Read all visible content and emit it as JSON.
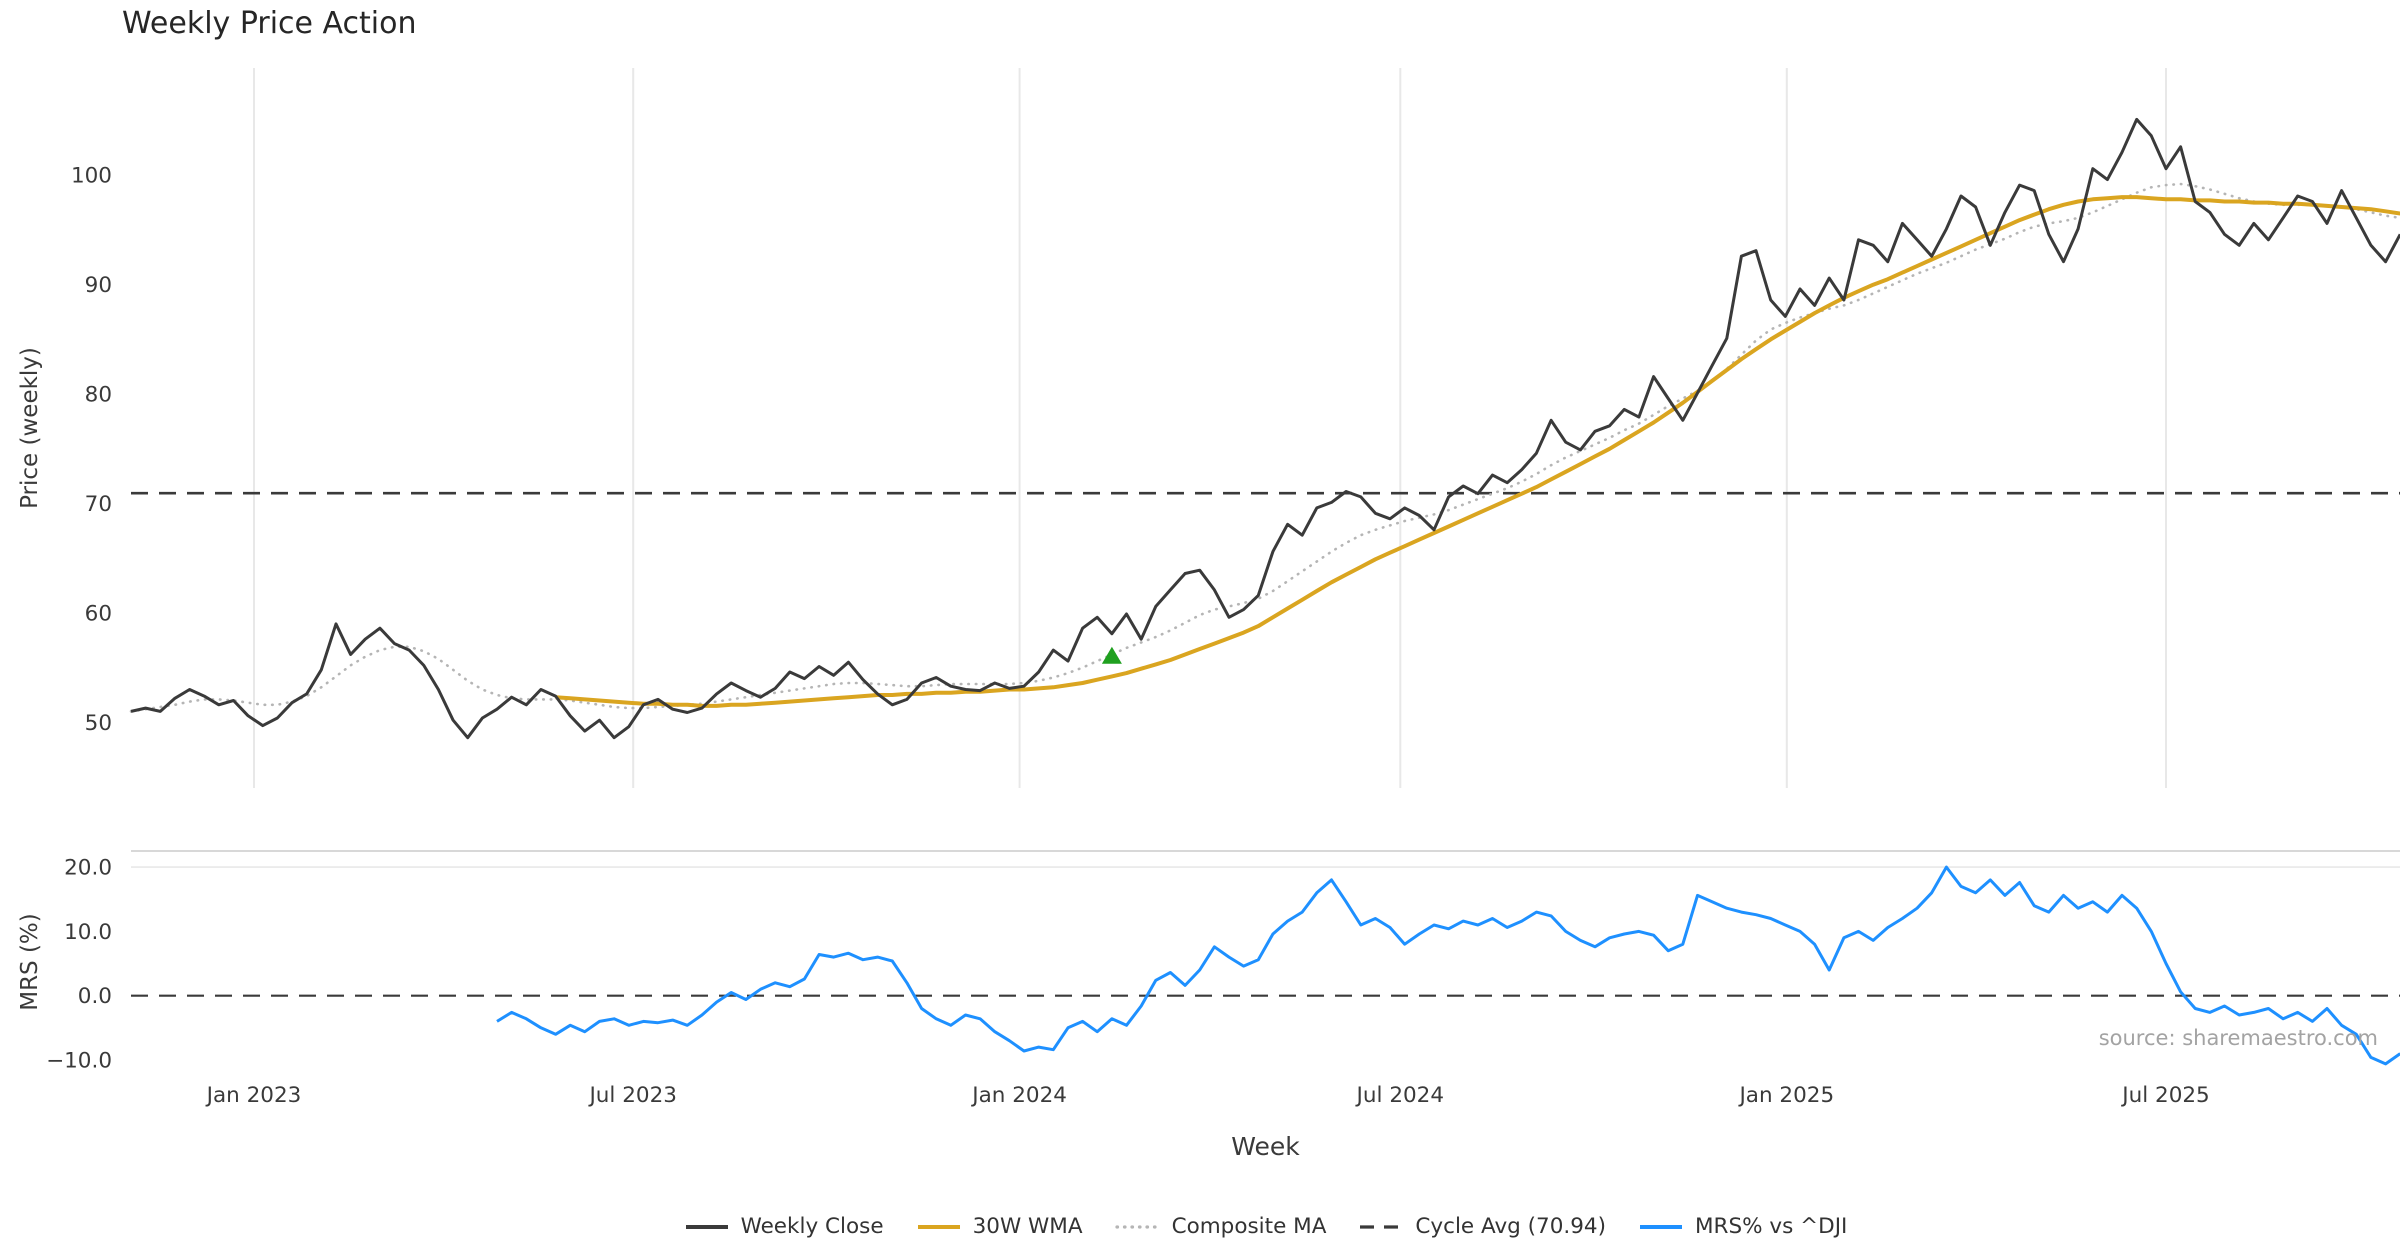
{
  "chart_data": {
    "type": "line",
    "title": "Weekly Price Action",
    "xlabel": "Week",
    "source": "source: sharemaestro.com",
    "legend_position": "bottom-center",
    "grid": "vertical-light-top-panel",
    "x_axis": {
      "unit": "week-index",
      "ticks": [
        {
          "label": "Jan 2023",
          "week": 8.4
        },
        {
          "label": "Jul 2023",
          "week": 34.3
        },
        {
          "label": "Jan 2024",
          "week": 60.7
        },
        {
          "label": "Jul 2024",
          "week": 86.7
        },
        {
          "label": "Jan 2025",
          "week": 113.1
        },
        {
          "label": "Jul 2025",
          "week": 139.0
        }
      ]
    },
    "panels": [
      {
        "name": "price",
        "ylabel": "Price (weekly)",
        "ylim": [
          44,
          109.8
        ],
        "yticks": [
          50,
          60,
          70,
          80,
          90,
          100
        ],
        "ytick_labels": [
          "50",
          "60",
          "70",
          "80",
          "90",
          "100"
        ],
        "cycle_avg": 70.94,
        "marker": {
          "week": 67,
          "value": 56,
          "symbol": "triangle-up",
          "color": "#1fa01f"
        },
        "series": [
          {
            "name": "Weekly Close",
            "color": "#3a3a3a",
            "style": "solid",
            "width": 3,
            "start_week": 0,
            "values": [
              51.0,
              51.3,
              51.0,
              52.2,
              53.0,
              52.4,
              51.6,
              52.0,
              50.6,
              49.7,
              50.4,
              51.8,
              52.6,
              54.8,
              59.0,
              56.2,
              57.6,
              58.6,
              57.2,
              56.6,
              55.2,
              53.0,
              50.2,
              48.6,
              50.4,
              51.2,
              52.3,
              51.6,
              53.0,
              52.4,
              50.6,
              49.2,
              50.2,
              48.6,
              49.6,
              51.6,
              52.1,
              51.2,
              50.9,
              51.3,
              52.6,
              53.6,
              52.9,
              52.3,
              53.1,
              54.6,
              54.0,
              55.1,
              54.3,
              55.5,
              53.9,
              52.6,
              51.6,
              52.1,
              53.6,
              54.1,
              53.3,
              53.0,
              52.9,
              53.6,
              53.1,
              53.3,
              54.6,
              56.6,
              55.6,
              58.6,
              59.6,
              58.1,
              59.9,
              57.6,
              60.6,
              62.1,
              63.6,
              63.9,
              62.1,
              59.6,
              60.3,
              61.6,
              65.6,
              68.1,
              67.1,
              69.6,
              70.1,
              71.1,
              70.6,
              69.1,
              68.6,
              69.6,
              68.9,
              67.6,
              70.6,
              71.6,
              70.9,
              72.6,
              71.9,
              73.1,
              74.6,
              77.6,
              75.6,
              74.9,
              76.6,
              77.1,
              78.6,
              77.9,
              81.6,
              79.6,
              77.6,
              80.1,
              82.6,
              85.1,
              92.6,
              93.1,
              88.6,
              87.1,
              89.6,
              88.1,
              90.6,
              88.6,
              94.1,
              93.6,
              92.1,
              95.6,
              94.1,
              92.6,
              95.1,
              98.1,
              97.1,
              93.6,
              96.6,
              99.1,
              98.6,
              94.6,
              92.1,
              95.1,
              100.6,
              99.6,
              102.1,
              105.1,
              103.6,
              100.6,
              102.6,
              97.6,
              96.6,
              94.6,
              93.6,
              95.6,
              94.1,
              96.1,
              98.1,
              97.6,
              95.6,
              98.6,
              96.1,
              93.6,
              92.1,
              94.6
            ]
          },
          {
            "name": "30W WMA",
            "color": "#DAA520",
            "style": "solid",
            "width": 4,
            "start_week": 29,
            "values": [
              52.3,
              52.2,
              52.1,
              52.0,
              51.9,
              51.8,
              51.7,
              51.7,
              51.6,
              51.6,
              51.5,
              51.5,
              51.6,
              51.6,
              51.7,
              51.8,
              51.9,
              52.0,
              52.1,
              52.2,
              52.3,
              52.4,
              52.5,
              52.5,
              52.6,
              52.6,
              52.7,
              52.7,
              52.8,
              52.8,
              52.9,
              53.0,
              53.0,
              53.1,
              53.2,
              53.4,
              53.6,
              53.9,
              54.2,
              54.5,
              54.9,
              55.3,
              55.7,
              56.2,
              56.7,
              57.2,
              57.7,
              58.2,
              58.8,
              59.6,
              60.4,
              61.2,
              62.0,
              62.8,
              63.5,
              64.2,
              64.9,
              65.5,
              66.1,
              66.7,
              67.3,
              67.9,
              68.5,
              69.1,
              69.7,
              70.3,
              70.9,
              71.5,
              72.2,
              72.9,
              73.6,
              74.3,
              75.0,
              75.8,
              76.6,
              77.4,
              78.3,
              79.2,
              80.2,
              81.2,
              82.2,
              83.2,
              84.1,
              85.0,
              85.8,
              86.6,
              87.4,
              88.1,
              88.8,
              89.4,
              90.0,
              90.5,
              91.1,
              91.7,
              92.3,
              92.9,
              93.5,
              94.1,
              94.7,
              95.3,
              95.9,
              96.4,
              96.9,
              97.3,
              97.6,
              97.8,
              97.9,
              98.0,
              98.0,
              97.9,
              97.8,
              97.8,
              97.7,
              97.7,
              97.6,
              97.6,
              97.5,
              97.5,
              97.4,
              97.4,
              97.3,
              97.2,
              97.1,
              97.0,
              96.9,
              96.7,
              96.5
            ]
          },
          {
            "name": "Composite MA",
            "color": "#b5b5b5",
            "style": "dotted",
            "width": 2.6,
            "start_week": 0,
            "values": [
              51.0,
              51.2,
              51.4,
              51.6,
              51.9,
              52.1,
              52.1,
              52.0,
              51.8,
              51.6,
              51.6,
              51.9,
              52.4,
              53.2,
              54.2,
              55.2,
              56.0,
              56.6,
              56.9,
              56.9,
              56.5,
              55.8,
              54.8,
              53.8,
              53.0,
              52.5,
              52.2,
              52.1,
              52.1,
              52.1,
              52.0,
              51.8,
              51.6,
              51.4,
              51.3,
              51.3,
              51.4,
              51.5,
              51.6,
              51.7,
              51.9,
              52.1,
              52.3,
              52.5,
              52.7,
              52.9,
              53.1,
              53.3,
              53.5,
              53.6,
              53.6,
              53.5,
              53.4,
              53.3,
              53.3,
              53.4,
              53.5,
              53.5,
              53.5,
              53.5,
              53.5,
              53.6,
              53.8,
              54.1,
              54.5,
              55.0,
              55.6,
              56.2,
              56.8,
              57.3,
              57.8,
              58.4,
              59.1,
              59.8,
              60.3,
              60.6,
              60.9,
              61.3,
              62.0,
              62.9,
              63.8,
              64.7,
              65.6,
              66.4,
              67.1,
              67.6,
              68.0,
              68.4,
              68.7,
              69.0,
              69.4,
              69.9,
              70.4,
              70.9,
              71.4,
              72.0,
              72.7,
              73.5,
              74.2,
              74.8,
              75.4,
              76.0,
              76.7,
              77.3,
              78.1,
              78.9,
              79.6,
              80.3,
              81.2,
              82.3,
              83.6,
              84.9,
              85.9,
              86.5,
              87.0,
              87.4,
              87.8,
              88.1,
              88.6,
              89.2,
              89.8,
              90.4,
              91.0,
              91.5,
              92.0,
              92.6,
              93.2,
              93.7,
              94.2,
              94.8,
              95.3,
              95.6,
              95.8,
              96.1,
              96.6,
              97.2,
              97.8,
              98.4,
              98.9,
              99.1,
              99.2,
              99.0,
              98.7,
              98.3,
              97.9,
              97.6,
              97.4,
              97.3,
              97.3,
              97.3,
              97.2,
              97.1,
              96.9,
              96.6,
              96.3,
              96.1
            ]
          },
          {
            "name": "Cycle Avg (70.94)",
            "color": "#3a3a3a",
            "style": "dashed",
            "width": 2.6,
            "line_type": "hline",
            "value": 70.94
          }
        ]
      },
      {
        "name": "mrs",
        "ylabel": "MRS (%)",
        "ylim": [
          -12.8,
          22.5
        ],
        "yticks": [
          20.0,
          10.0,
          0.0,
          -10.0
        ],
        "ytick_labels": [
          "20.0",
          "10.0",
          "0.0",
          "−10.0"
        ],
        "series": [
          {
            "name": "MRS% vs ^DJI",
            "color": "#1E90FF",
            "style": "solid",
            "width": 3,
            "start_week": 25,
            "values": [
              -4.0,
              -2.6,
              -3.6,
              -5.0,
              -6.0,
              -4.6,
              -5.6,
              -4.0,
              -3.6,
              -4.6,
              -4.0,
              -4.2,
              -3.8,
              -4.6,
              -3.0,
              -1.0,
              0.5,
              -0.6,
              1.0,
              2.0,
              1.4,
              2.6,
              6.4,
              6.0,
              6.6,
              5.6,
              6.0,
              5.4,
              2.0,
              -2.0,
              -3.6,
              -4.6,
              -3.0,
              -3.6,
              -5.6,
              -7.0,
              -8.6,
              -8.0,
              -8.4,
              -5.0,
              -4.0,
              -5.6,
              -3.6,
              -4.6,
              -1.6,
              2.4,
              3.6,
              1.6,
              4.0,
              7.6,
              6.0,
              4.6,
              5.6,
              9.6,
              11.6,
              13.0,
              16.0,
              18.0,
              14.6,
              11.0,
              12.0,
              10.6,
              8.0,
              9.6,
              11.0,
              10.4,
              11.6,
              11.0,
              12.0,
              10.6,
              11.6,
              13.0,
              12.4,
              10.0,
              8.6,
              7.6,
              9.0,
              9.6,
              10.0,
              9.4,
              7.0,
              8.0,
              15.6,
              14.6,
              13.6,
              13.0,
              12.6,
              12.0,
              11.0,
              10.0,
              8.0,
              4.0,
              9.0,
              10.0,
              8.6,
              10.6,
              12.0,
              13.6,
              16.0,
              20.0,
              17.0,
              16.0,
              18.0,
              15.6,
              17.6,
              14.0,
              13.0,
              15.6,
              13.6,
              14.6,
              13.0,
              15.6,
              13.6,
              10.0,
              5.0,
              0.6,
              -2.0,
              -2.6,
              -1.6,
              -3.0,
              -2.6,
              -2.0,
              -3.6,
              -2.6,
              -4.0,
              -2.0,
              -4.6,
              -6.0,
              -9.6,
              -10.6,
              -9.0
            ]
          },
          {
            "name": "Zero line",
            "color": "#3a3a3a",
            "style": "dashed",
            "width": 2.2,
            "line_type": "hline",
            "value": 0
          }
        ]
      }
    ],
    "legend": [
      {
        "label": "Weekly Close",
        "color": "#3a3a3a",
        "style": "solid"
      },
      {
        "label": "30W WMA",
        "color": "#DAA520",
        "style": "solid"
      },
      {
        "label": "Composite MA",
        "color": "#b5b5b5",
        "style": "dotted"
      },
      {
        "label": "Cycle Avg (70.94)",
        "color": "#3a3a3a",
        "style": "dashed"
      },
      {
        "label": "MRS% vs ^DJI",
        "color": "#1E90FF",
        "style": "solid"
      }
    ]
  }
}
